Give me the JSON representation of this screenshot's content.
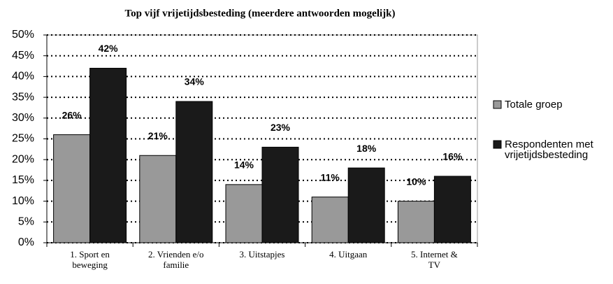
{
  "chart_data": {
    "type": "bar",
    "title": "Top vijf vrijetijdsbesteding (meerdere antwoorden mogelijk)",
    "categories": [
      "1. Sport en beweging",
      "2. Vrienden e/o familie",
      "3. Uitstapjes",
      "4. Uitgaan",
      "5. Internet & TV"
    ],
    "series": [
      {
        "name": "Totale groep",
        "color": "#999999",
        "values": [
          26,
          21,
          14,
          11,
          10
        ],
        "value_labels": [
          "26%",
          "21%",
          "14%",
          "11%",
          "10%"
        ]
      },
      {
        "name": "Respondenten met vrijetijdsbesteding",
        "color": "#1a1a1a",
        "values": [
          42,
          34,
          23,
          18,
          16
        ],
        "value_labels": [
          "42%",
          "34%",
          "23%",
          "18%",
          "16%"
        ]
      }
    ],
    "ylim": [
      0,
      50
    ],
    "yticks": [
      {
        "value": 0,
        "label": "0%"
      },
      {
        "value": 5,
        "label": "5%"
      },
      {
        "value": 10,
        "label": "10%"
      },
      {
        "value": 15,
        "label": "15%"
      },
      {
        "value": 20,
        "label": "20%"
      },
      {
        "value": 25,
        "label": "25%"
      },
      {
        "value": 30,
        "label": "30%"
      },
      {
        "value": 35,
        "label": "35%"
      },
      {
        "value": 40,
        "label": "40%"
      },
      {
        "value": 45,
        "label": "45%"
      },
      {
        "value": 50,
        "label": "50%"
      }
    ],
    "grid": true,
    "legend": "right"
  }
}
